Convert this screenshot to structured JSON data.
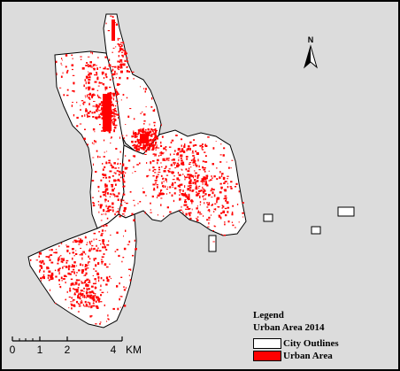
{
  "map": {
    "city_outline_color": "#000000",
    "city_fill_color": "#ffffff",
    "urban_color": "#ff0000",
    "background_color": "#dcdcdc"
  },
  "north_arrow": {
    "label": "N",
    "icon": "north-arrow-icon"
  },
  "legend": {
    "title": "Legend",
    "subtitle": "Urban Area 2014",
    "items": [
      {
        "label": "City Outlines",
        "swatch": "#ffffff"
      },
      {
        "label": "Urban Area",
        "swatch": "#ff0000"
      }
    ]
  },
  "scale_bar": {
    "ticks": [
      "0",
      "1",
      "2",
      "4"
    ],
    "unit": "KM"
  }
}
